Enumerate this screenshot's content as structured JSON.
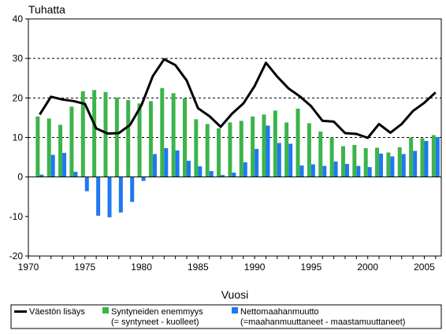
{
  "chart_data": {
    "type": "bar",
    "ylabel": "Tuhatta",
    "xlabel": "Vuosi",
    "ylim": [
      -20,
      40
    ],
    "xlim": [
      1970,
      2006.5
    ],
    "yticks": [
      -20,
      -10,
      0,
      10,
      20,
      30,
      40
    ],
    "xticks": [
      1970,
      1975,
      1980,
      1985,
      1990,
      1995,
      2000,
      2005
    ],
    "grid": "horizontal dashed at 10, 20, 30",
    "legend_position": "bottom",
    "years": [
      1971,
      1972,
      1973,
      1974,
      1975,
      1976,
      1977,
      1978,
      1979,
      1980,
      1981,
      1982,
      1983,
      1984,
      1985,
      1986,
      1987,
      1988,
      1989,
      1990,
      1991,
      1992,
      1993,
      1994,
      1995,
      1996,
      1997,
      1998,
      1999,
      2000,
      2001,
      2002,
      2003,
      2004,
      2005,
      2006
    ],
    "series": [
      {
        "name": "Väestön lisäys",
        "kind": "line",
        "color": "#000000",
        "values": [
          15.8,
          20.3,
          19.6,
          19.2,
          18.5,
          12.3,
          11.0,
          11.1,
          13.2,
          18.2,
          25.5,
          29.8,
          28.3,
          24.4,
          17.4,
          15.4,
          12.7,
          16.0,
          18.6,
          23.0,
          28.9,
          25.4,
          22.4,
          20.4,
          17.9,
          14.2,
          14.0,
          11.1,
          10.9,
          9.9,
          13.4,
          11.2,
          13.4,
          16.7,
          18.8,
          21.4
        ]
      },
      {
        "name": "Syntyneiden enemmyys",
        "name_note": "(= syntyneet - kuolleet)",
        "kind": "bar",
        "color": "#3cb44b",
        "values": [
          15.3,
          14.8,
          13.2,
          17.8,
          21.7,
          22.0,
          21.5,
          20.1,
          19.5,
          18.6,
          19.2,
          22.5,
          21.2,
          19.9,
          14.6,
          13.4,
          12.3,
          13.8,
          14.2,
          15.3,
          15.8,
          16.8,
          13.8,
          17.3,
          13.6,
          11.5,
          10.0,
          7.8,
          8.1,
          7.3,
          7.4,
          6.2,
          7.5,
          10.0,
          9.8,
          10.6
        ]
      },
      {
        "name": "Nettomaahanmuutto",
        "name_note": "(=maahanmuuttaneet - maastamuuttaneet)",
        "kind": "bar",
        "color": "#1e78f0",
        "values": [
          0.6,
          5.6,
          6.1,
          1.3,
          -3.6,
          -9.8,
          -10.2,
          -9.0,
          -6.3,
          -1.0,
          5.8,
          7.3,
          6.7,
          4.1,
          2.7,
          1.5,
          0.5,
          1.1,
          3.7,
          7.1,
          13.0,
          8.6,
          8.4,
          2.9,
          3.2,
          2.8,
          3.9,
          3.3,
          2.8,
          2.5,
          5.9,
          5.2,
          5.8,
          6.6,
          9.1,
          10.1
        ]
      }
    ]
  }
}
